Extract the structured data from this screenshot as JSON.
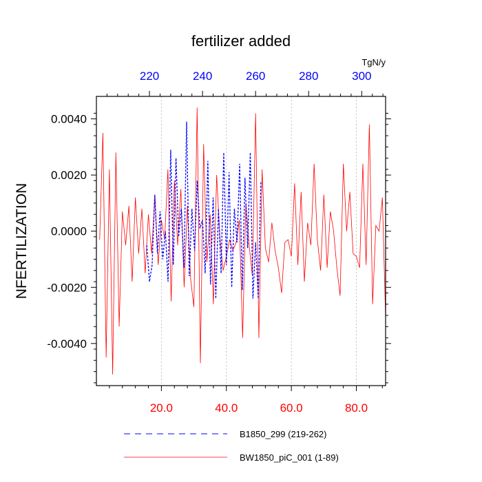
{
  "chart_data": {
    "type": "line",
    "title": "fertilizer added",
    "units": "TgN/y",
    "ylabel": "NFERTILIZATION",
    "ylim": [
      -0.0055,
      0.0048
    ],
    "y_ticks": [
      "0.0040",
      "0.0020",
      "0.0000",
      "-0.0020",
      "-0.0040"
    ],
    "y_tick_values": [
      0.004,
      0.002,
      0.0,
      -0.002,
      -0.004
    ],
    "bottom_axis": {
      "range": [
        0,
        89
      ],
      "ticks": [
        "20.0",
        "40.0",
        "60.0",
        "80.0"
      ],
      "tick_values": [
        20,
        40,
        60,
        80
      ],
      "color": "#ff0000"
    },
    "top_axis": {
      "range": [
        200,
        309
      ],
      "ticks": [
        "220",
        "240",
        "260",
        "280",
        "300"
      ],
      "tick_values": [
        220,
        240,
        260,
        280,
        300
      ],
      "color": "#0000ff"
    },
    "grid": "vertical dashed at bottom-axis ticks",
    "legend_position": "bottom",
    "series": [
      {
        "name": "B1850_299 (219-262)",
        "axis": "top",
        "color": "#0000ff",
        "style": "dashed",
        "x": [
          219,
          220,
          221,
          222,
          223,
          224,
          225,
          226,
          227,
          228,
          229,
          230,
          231,
          232,
          233,
          234,
          235,
          236,
          237,
          238,
          239,
          240,
          241,
          242,
          243,
          244,
          245,
          246,
          247,
          248,
          249,
          250,
          251,
          252,
          253,
          254,
          255,
          256,
          257,
          258,
          259,
          260,
          261,
          262
        ],
        "y": [
          -0.0005,
          -0.0018,
          -0.0012,
          0.0013,
          -0.0008,
          0.0007,
          -0.001,
          0.0,
          -0.0018,
          0.0029,
          -0.0012,
          0.0026,
          -0.0002,
          0.0008,
          -0.0013,
          0.0039,
          -0.0016,
          0.0008,
          -0.0007,
          0.0018,
          0.0001,
          0.0004,
          -0.0015,
          0.0025,
          -0.0019,
          0.0012,
          -0.0024,
          0.0008,
          -0.0015,
          0.0028,
          -0.0012,
          0.0021,
          -0.002,
          0.0008,
          -0.0004,
          0.0024,
          -0.0021,
          0.0019,
          -0.0006,
          0.0028,
          -0.0024,
          -0.0004,
          -0.0024,
          0.0018
        ]
      },
      {
        "name": "BW1850_piC_001 (1-89)",
        "axis": "bottom",
        "color": "#ff0000",
        "style": "solid",
        "x": [
          1,
          2,
          3,
          4,
          5,
          6,
          7,
          8,
          9,
          10,
          11,
          12,
          13,
          14,
          15,
          16,
          17,
          18,
          19,
          20,
          21,
          22,
          23,
          24,
          25,
          26,
          27,
          28,
          29,
          30,
          31,
          32,
          33,
          34,
          35,
          36,
          37,
          38,
          39,
          40,
          41,
          42,
          43,
          44,
          45,
          46,
          47,
          48,
          49,
          50,
          51,
          52,
          53,
          54,
          55,
          56,
          57,
          58,
          59,
          60,
          61,
          62,
          63,
          64,
          65,
          66,
          67,
          68,
          69,
          70,
          71,
          72,
          73,
          74,
          75,
          76,
          77,
          78,
          79,
          80,
          81,
          82,
          83,
          84,
          85,
          86,
          87,
          88,
          89
        ],
        "y": [
          -0.0003,
          0.0035,
          -0.0045,
          0.0022,
          -0.0051,
          0.0028,
          -0.0034,
          0.0007,
          -0.0005,
          0.0009,
          -0.0018,
          0.0012,
          -0.0008,
          0.0008,
          -0.0015,
          0.0006,
          -0.0008,
          0.0013,
          -0.0012,
          0.0004,
          -0.0003,
          0.0022,
          -0.0025,
          0.0018,
          -0.0005,
          0.0015,
          -0.002,
          0.0009,
          -0.0017,
          -0.0027,
          0.0044,
          -0.0047,
          0.0031,
          -0.0011,
          0.0006,
          -0.0026,
          0.002,
          -0.0002,
          -0.0014,
          -0.0009,
          -0.0003,
          -0.0007,
          -0.0004,
          0.0004,
          -0.0038,
          0.001,
          -0.0005,
          -0.0016,
          0.0042,
          -0.0038,
          0.0022,
          -0.0006,
          -0.0011,
          0.0003,
          -0.0007,
          -0.0013,
          -0.0022,
          -0.0004,
          -0.0003,
          -0.0009,
          0.0017,
          -0.0012,
          0.0014,
          -0.0018,
          0.0003,
          -0.0005,
          0.0024,
          -0.0003,
          -0.0014,
          0.0013,
          -0.0013,
          0.0007,
          0.0,
          -0.0013,
          -0.0023,
          0.0024,
          0.0,
          0.0014,
          -0.0008,
          -0.0009,
          -0.0013,
          0.0024,
          -0.0012,
          0.0038,
          -0.0026,
          0.0002,
          0.0,
          0.0012,
          -0.0031
        ]
      }
    ]
  }
}
